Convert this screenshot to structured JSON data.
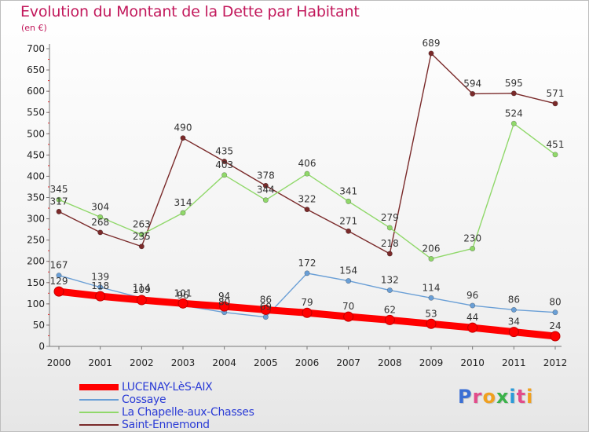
{
  "title": "Evolution du Montant de la Dette par Habitant",
  "unit": "(en €)",
  "logo": "Proxiti",
  "logo_colors": [
    "#3b6fd4",
    "#e24b8a",
    "#f0a020",
    "#3bb24a",
    "#2a9ad8",
    "#e24b8a",
    "#f0a020"
  ],
  "chart_data": {
    "type": "line",
    "title": "Evolution du Montant de la Dette par Habitant",
    "ylabel": "(en €)",
    "ylim": [
      0,
      700
    ],
    "ytick_step": 50,
    "grid": false,
    "legend_position": "bottom-left",
    "x": [
      "2000",
      "2001",
      "2002",
      "2003",
      "2004",
      "2005",
      "2006",
      "2007",
      "2008",
      "2009",
      "2010",
      "2011",
      "2012"
    ],
    "series": [
      {
        "name": "LUCENAY-LèS-AIX",
        "color": "#ff0000",
        "values": [
          129,
          118,
          109,
          101,
          94,
          86,
          79,
          70,
          62,
          53,
          44,
          34,
          24
        ]
      },
      {
        "name": "Cossaye",
        "color": "#6a9fd6",
        "values": [
          167,
          139,
          114,
          96,
          80,
          69,
          172,
          154,
          132,
          114,
          96,
          86,
          80
        ]
      },
      {
        "name": "La Chapelle-aux-Chasses",
        "color": "#90d86a",
        "values": [
          345,
          304,
          263,
          314,
          403,
          344,
          406,
          341,
          279,
          206,
          230,
          524,
          451
        ]
      },
      {
        "name": "Saint-Ennemond",
        "color": "#7a2a2a",
        "values": [
          317,
          268,
          235,
          490,
          435,
          378,
          322,
          271,
          218,
          689,
          594,
          595,
          571
        ]
      }
    ]
  }
}
